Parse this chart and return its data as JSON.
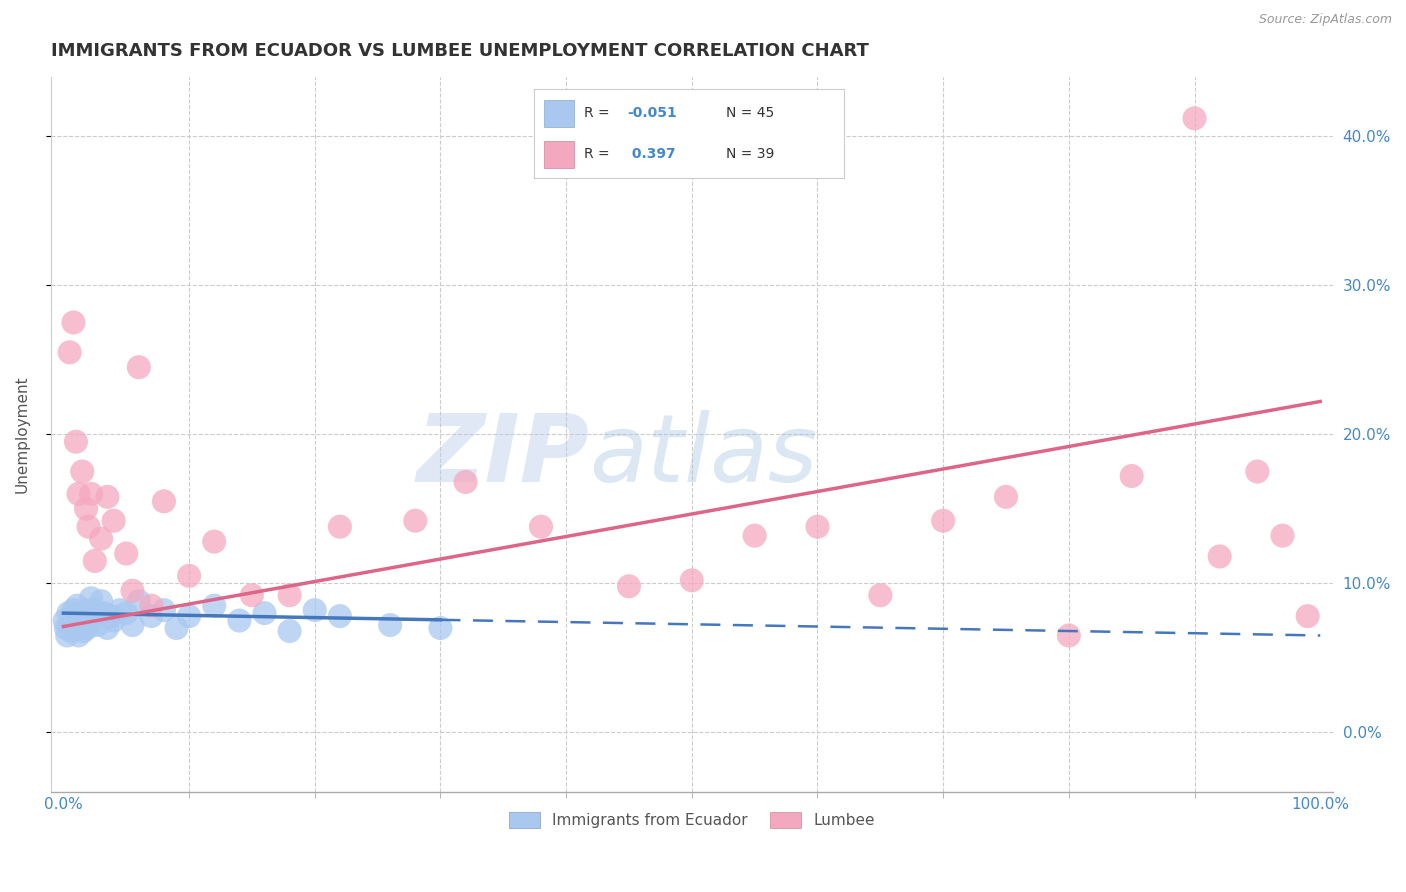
{
  "title": "IMMIGRANTS FROM ECUADOR VS LUMBEE UNEMPLOYMENT CORRELATION CHART",
  "source_text": "Source: ZipAtlas.com",
  "ylabel": "Unemployment",
  "xlim": [
    -0.01,
    1.01
  ],
  "ylim": [
    -0.04,
    0.44
  ],
  "xtick_positions": [
    0.0,
    1.0
  ],
  "xtick_labels": [
    "0.0%",
    "100.0%"
  ],
  "xtick_minor": [
    0.1,
    0.2,
    0.3,
    0.4,
    0.5,
    0.6,
    0.7,
    0.8,
    0.9
  ],
  "yticks_right": [
    0.0,
    0.1,
    0.2,
    0.3,
    0.4
  ],
  "ytick_labels_right": [
    "0.0%",
    "10.0%",
    "20.0%",
    "30.0%",
    "40.0%"
  ],
  "blue_R": -0.051,
  "blue_N": 45,
  "pink_R": 0.397,
  "pink_N": 39,
  "blue_color": "#a8c8f0",
  "pink_color": "#f4a8c0",
  "blue_line_color": "#4477bb",
  "pink_line_color": "#dd6688",
  "watermark_zip": "ZIP",
  "watermark_atlas": "atlas",
  "legend_label_blue": "Immigrants from Ecuador",
  "legend_label_pink": "Lumbee",
  "blue_scatter_x": [
    0.001,
    0.002,
    0.003,
    0.004,
    0.005,
    0.006,
    0.007,
    0.008,
    0.009,
    0.01,
    0.011,
    0.012,
    0.013,
    0.014,
    0.015,
    0.016,
    0.017,
    0.018,
    0.019,
    0.02,
    0.022,
    0.024,
    0.025,
    0.027,
    0.03,
    0.032,
    0.035,
    0.038,
    0.04,
    0.045,
    0.05,
    0.055,
    0.06,
    0.07,
    0.08,
    0.09,
    0.1,
    0.12,
    0.14,
    0.16,
    0.18,
    0.2,
    0.22,
    0.26,
    0.3
  ],
  "blue_scatter_y": [
    0.075,
    0.07,
    0.065,
    0.08,
    0.072,
    0.068,
    0.078,
    0.082,
    0.07,
    0.076,
    0.085,
    0.065,
    0.072,
    0.078,
    0.08,
    0.068,
    0.074,
    0.082,
    0.07,
    0.076,
    0.09,
    0.078,
    0.082,
    0.072,
    0.088,
    0.08,
    0.07,
    0.078,
    0.075,
    0.082,
    0.08,
    0.072,
    0.088,
    0.078,
    0.082,
    0.07,
    0.078,
    0.085,
    0.075,
    0.08,
    0.068,
    0.082,
    0.078,
    0.072,
    0.07
  ],
  "pink_scatter_x": [
    0.005,
    0.008,
    0.01,
    0.012,
    0.015,
    0.018,
    0.02,
    0.022,
    0.025,
    0.03,
    0.035,
    0.04,
    0.05,
    0.055,
    0.06,
    0.07,
    0.08,
    0.1,
    0.12,
    0.15,
    0.18,
    0.22,
    0.28,
    0.32,
    0.38,
    0.45,
    0.5,
    0.55,
    0.6,
    0.65,
    0.7,
    0.75,
    0.8,
    0.85,
    0.9,
    0.92,
    0.95,
    0.97,
    0.99
  ],
  "pink_scatter_y": [
    0.255,
    0.275,
    0.195,
    0.16,
    0.175,
    0.15,
    0.138,
    0.16,
    0.115,
    0.13,
    0.158,
    0.142,
    0.12,
    0.095,
    0.245,
    0.085,
    0.155,
    0.105,
    0.128,
    0.092,
    0.092,
    0.138,
    0.142,
    0.168,
    0.138,
    0.098,
    0.102,
    0.132,
    0.138,
    0.092,
    0.142,
    0.158,
    0.065,
    0.172,
    0.412,
    0.118,
    0.175,
    0.132,
    0.078
  ],
  "blue_line_x0": 0.0,
  "blue_line_x_solid_end": 0.3,
  "blue_line_x1": 1.0,
  "blue_line_y0": 0.08,
  "blue_line_y1": 0.065,
  "pink_line_x0": 0.0,
  "pink_line_x1": 1.0,
  "pink_line_y0": 0.071,
  "pink_line_y1": 0.222,
  "title_fontsize": 13,
  "label_fontsize": 11,
  "tick_fontsize": 11
}
